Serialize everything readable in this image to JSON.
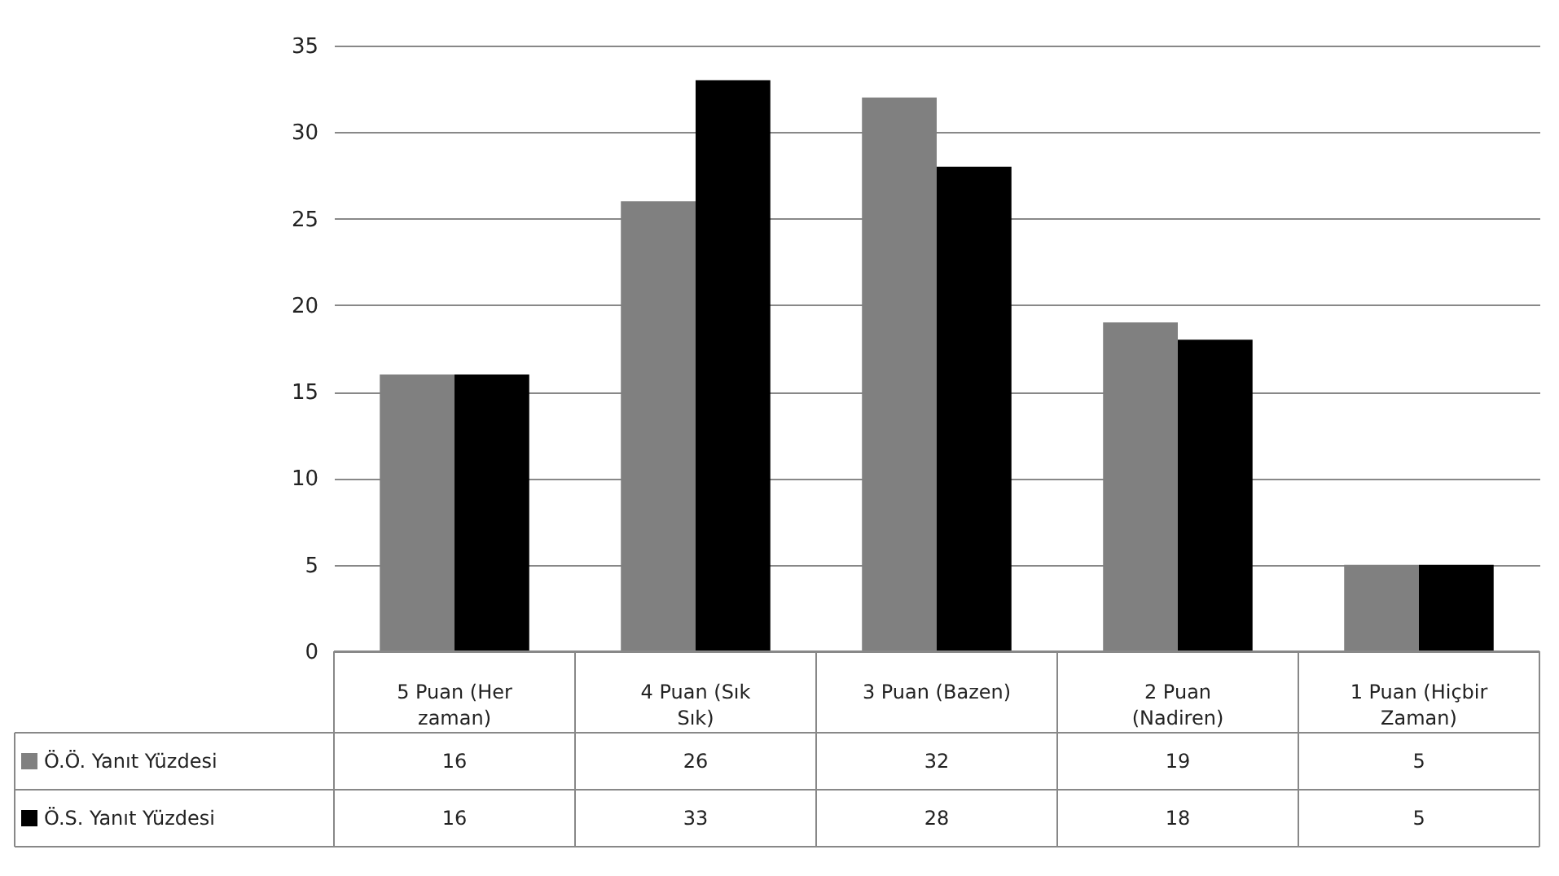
{
  "chart_data": {
    "type": "bar",
    "categories": [
      "5 Puan  (Her zaman)",
      "4 Puan (Sık Sık)",
      "3 Puan (Bazen)",
      "2 Puan (Nadiren)",
      "1 Puan (Hiçbir Zaman)"
    ],
    "series": [
      {
        "name": "Ö.Ö. Yanıt Yüzdesi",
        "color": "#808080",
        "values": [
          16,
          26,
          32,
          19,
          5
        ]
      },
      {
        "name": "Ö.S. Yanıt Yüzdesi",
        "color": "#000000",
        "values": [
          16,
          33,
          28,
          18,
          5
        ]
      }
    ],
    "ylim": [
      0,
      35
    ],
    "yticks": [
      0,
      5,
      10,
      15,
      20,
      25,
      30,
      35
    ],
    "grid": "y",
    "data_labels": true,
    "legend": "bottom left"
  }
}
